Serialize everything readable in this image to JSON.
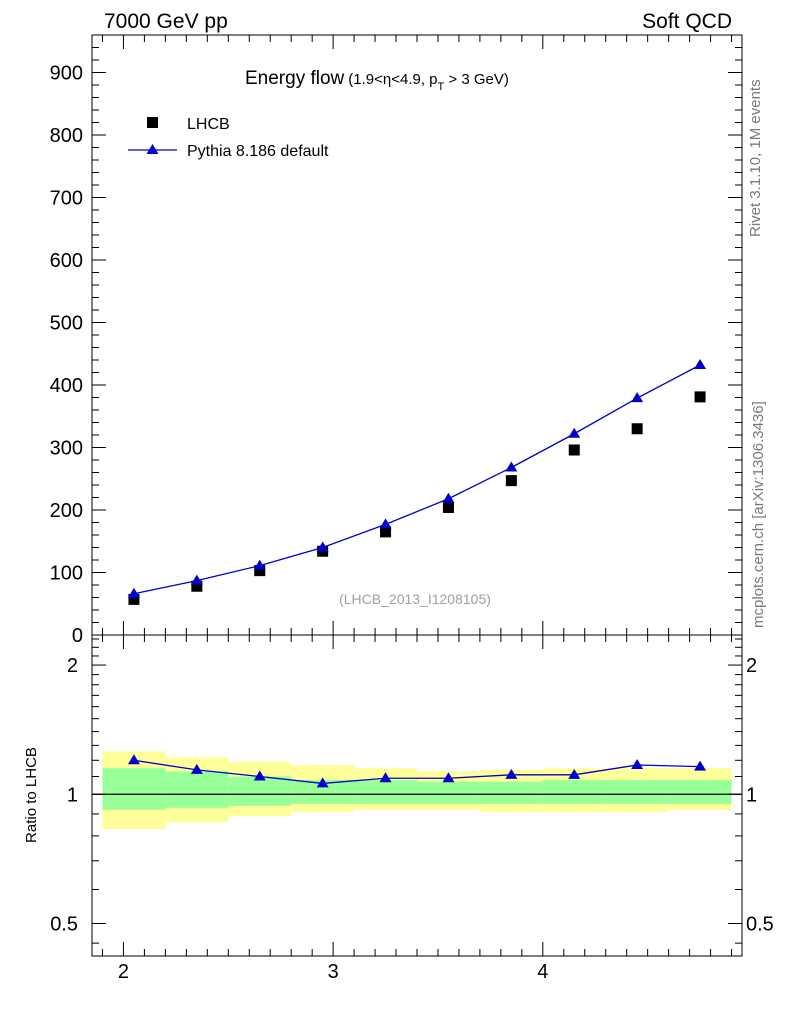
{
  "header": {
    "left": "7000 GeV pp",
    "right": "Soft QCD"
  },
  "side": {
    "rivet": "Rivet 3.1.10,  1M events",
    "source": "mcplots.cern.ch [arXiv:1306.3436]"
  },
  "chart_data": [
    {
      "type": "scatter",
      "title_main": "Energy flow",
      "title_eta_pre": "(1.9<",
      "title_eta_sym": "η",
      "title_eta_post": "<4.9, p",
      "title_sub": "T",
      "title_tail": " > 3 GeV)",
      "watermark": "(LHCB_2013_I1208105)",
      "xlim": [
        1.85,
        4.95
      ],
      "ylim": [
        0,
        960
      ],
      "yticks": [
        0,
        100,
        200,
        300,
        400,
        500,
        600,
        700,
        800,
        900
      ],
      "x": [
        2.05,
        2.35,
        2.65,
        2.95,
        3.25,
        3.55,
        3.85,
        4.15,
        4.45,
        4.75
      ],
      "series": [
        {
          "name": "LHCB",
          "marker": "square",
          "color": "#000000",
          "values": [
            57,
            78,
            103,
            134,
            165,
            204,
            247,
            296,
            330,
            381
          ]
        },
        {
          "name": "Pythia 8.186 default",
          "marker": "triangle",
          "color": "#0000cc",
          "values": [
            66,
            87,
            111,
            140,
            177,
            218,
            268,
            322,
            379,
            432
          ]
        }
      ]
    },
    {
      "type": "line",
      "ylabel": "Ratio to LHCB",
      "scale": "log",
      "ylim": [
        0.42,
        2.35
      ],
      "yticks": [
        0.5,
        1,
        2
      ],
      "ytick_labels": [
        "0.5",
        "1",
        "2"
      ],
      "xticks": [
        2,
        3,
        4
      ],
      "x": [
        2.05,
        2.35,
        2.65,
        2.95,
        3.25,
        3.55,
        3.85,
        4.15,
        4.45,
        4.75
      ],
      "bin_edges": [
        1.9,
        2.2,
        2.5,
        2.8,
        3.1,
        3.4,
        3.7,
        4.0,
        4.3,
        4.6,
        4.9
      ],
      "band_yellow": [
        [
          0.83,
          1.26
        ],
        [
          0.86,
          1.22
        ],
        [
          0.89,
          1.19
        ],
        [
          0.91,
          1.17
        ],
        [
          0.92,
          1.15
        ],
        [
          0.92,
          1.13
        ],
        [
          0.91,
          1.14
        ],
        [
          0.91,
          1.15
        ],
        [
          0.91,
          1.15
        ],
        [
          0.92,
          1.15
        ]
      ],
      "band_green": [
        [
          0.92,
          1.15
        ],
        [
          0.93,
          1.13
        ],
        [
          0.94,
          1.1
        ],
        [
          0.95,
          1.08
        ],
        [
          0.95,
          1.08
        ],
        [
          0.95,
          1.07
        ],
        [
          0.95,
          1.07
        ],
        [
          0.95,
          1.08
        ],
        [
          0.95,
          1.08
        ],
        [
          0.95,
          1.08
        ]
      ],
      "series": [
        {
          "name": "Pythia 8.186 default",
          "color": "#0000cc",
          "values": [
            1.2,
            1.14,
            1.1,
            1.06,
            1.09,
            1.09,
            1.11,
            1.11,
            1.17,
            1.16
          ]
        }
      ]
    }
  ]
}
